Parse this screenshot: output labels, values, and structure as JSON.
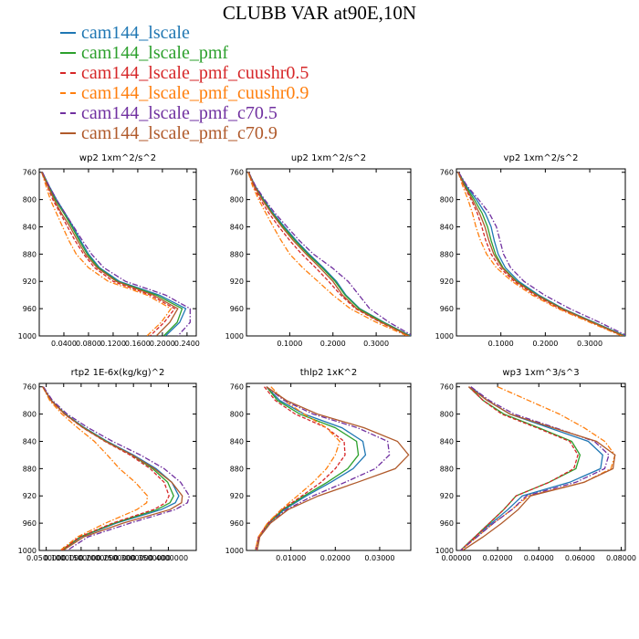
{
  "figure": {
    "title": "CLUBB VAR at90E,10N"
  },
  "legend": [
    {
      "name": "cam144_lscale",
      "color": "#1f77b4",
      "style": "solid"
    },
    {
      "name": "cam144_lscale_pmf",
      "color": "#2ca02c",
      "style": "solid"
    },
    {
      "name": "cam144_lscale_pmf_cuushr0.5",
      "color": "#d62728",
      "style": "dashed"
    },
    {
      "name": "cam144_lscale_pmf_cuushr0.9",
      "color": "#ff7f0e",
      "style": "dashdot"
    },
    {
      "name": "cam144_lscale_pmf_c70.5",
      "color": "#7030a0",
      "style": "dashdot"
    },
    {
      "name": "cam144_lscale_pmf_c70.9",
      "color": "#b05a2b",
      "style": "solid"
    }
  ],
  "chart_data": [
    {
      "type": "line",
      "title": "wp2  1xm^2/s^2",
      "y": [
        760,
        780,
        800,
        820,
        840,
        860,
        880,
        900,
        920,
        940,
        960,
        980,
        1000
      ],
      "ylim": [
        1000,
        755
      ],
      "xlim": [
        0,
        0.255
      ],
      "xticks": [
        0.04,
        0.08,
        0.12,
        0.16,
        0.2,
        0.24
      ],
      "xtick_labels": [
        "0.0400",
        "0.0800",
        "0.1200",
        "0.1600",
        "0.2000",
        "0.2400"
      ],
      "yticks": [
        760,
        800,
        840,
        880,
        920,
        960,
        1000
      ],
      "series": [
        {
          "values": [
            0.005,
            0.016,
            0.028,
            0.042,
            0.055,
            0.067,
            0.08,
            0.098,
            0.13,
            0.195,
            0.238,
            0.228,
            0.205
          ]
        },
        {
          "values": [
            0.005,
            0.015,
            0.026,
            0.04,
            0.053,
            0.065,
            0.078,
            0.096,
            0.127,
            0.19,
            0.232,
            0.224,
            0.202
          ]
        },
        {
          "values": [
            0.004,
            0.013,
            0.022,
            0.034,
            0.046,
            0.058,
            0.072,
            0.09,
            0.12,
            0.18,
            0.22,
            0.203,
            0.18
          ]
        },
        {
          "values": [
            0.004,
            0.011,
            0.018,
            0.028,
            0.038,
            0.048,
            0.06,
            0.08,
            0.112,
            0.175,
            0.214,
            0.198,
            0.175
          ]
        },
        {
          "values": [
            0.005,
            0.016,
            0.028,
            0.042,
            0.056,
            0.07,
            0.085,
            0.105,
            0.14,
            0.205,
            0.245,
            0.245,
            0.225
          ]
        },
        {
          "values": [
            0.004,
            0.014,
            0.024,
            0.036,
            0.05,
            0.062,
            0.075,
            0.094,
            0.125,
            0.185,
            0.225,
            0.212,
            0.19
          ]
        }
      ]
    },
    {
      "type": "line",
      "title": "up2  1xm^2/s^2",
      "y": [
        760,
        780,
        800,
        820,
        840,
        860,
        880,
        900,
        920,
        940,
        960,
        980,
        1000
      ],
      "ylim": [
        1000,
        755
      ],
      "xlim": [
        0,
        0.38
      ],
      "xticks": [
        0.1,
        0.2,
        0.3
      ],
      "xtick_labels": [
        "0.1000",
        "0.2000",
        "0.3000"
      ],
      "yticks": [
        760,
        800,
        840,
        880,
        920,
        960,
        1000
      ],
      "series": [
        {
          "values": [
            0.005,
            0.02,
            0.04,
            0.062,
            0.088,
            0.115,
            0.145,
            0.178,
            0.208,
            0.23,
            0.262,
            0.318,
            0.38
          ]
        },
        {
          "values": [
            0.005,
            0.019,
            0.038,
            0.06,
            0.085,
            0.112,
            0.142,
            0.175,
            0.205,
            0.228,
            0.26,
            0.316,
            0.378
          ]
        },
        {
          "values": [
            0.004,
            0.016,
            0.032,
            0.052,
            0.075,
            0.1,
            0.128,
            0.16,
            0.19,
            0.218,
            0.252,
            0.31,
            0.375
          ]
        },
        {
          "values": [
            0.004,
            0.014,
            0.028,
            0.045,
            0.062,
            0.08,
            0.1,
            0.13,
            0.165,
            0.2,
            0.24,
            0.3,
            0.372
          ]
        },
        {
          "values": [
            0.005,
            0.021,
            0.042,
            0.066,
            0.094,
            0.122,
            0.155,
            0.198,
            0.235,
            0.26,
            0.285,
            0.33,
            0.385
          ]
        },
        {
          "values": [
            0.005,
            0.018,
            0.036,
            0.058,
            0.082,
            0.108,
            0.138,
            0.17,
            0.2,
            0.222,
            0.255,
            0.312,
            0.376
          ]
        }
      ]
    },
    {
      "type": "line",
      "title": "vp2  1xm^2/s^2",
      "y": [
        760,
        780,
        800,
        820,
        840,
        860,
        880,
        900,
        920,
        940,
        960,
        980,
        1000
      ],
      "ylim": [
        1000,
        755
      ],
      "xlim": [
        0,
        0.38
      ],
      "xticks": [
        0.1,
        0.2,
        0.3
      ],
      "xtick_labels": [
        "0.1000",
        "0.2000",
        "0.3000"
      ],
      "yticks": [
        760,
        800,
        840,
        880,
        920,
        960,
        1000
      ],
      "series": [
        {
          "values": [
            0.005,
            0.022,
            0.045,
            0.065,
            0.078,
            0.085,
            0.094,
            0.11,
            0.14,
            0.185,
            0.24,
            0.31,
            0.38
          ]
        },
        {
          "values": [
            0.005,
            0.02,
            0.04,
            0.058,
            0.07,
            0.078,
            0.088,
            0.105,
            0.136,
            0.182,
            0.238,
            0.308,
            0.378
          ]
        },
        {
          "values": [
            0.004,
            0.017,
            0.033,
            0.047,
            0.057,
            0.066,
            0.078,
            0.098,
            0.13,
            0.176,
            0.232,
            0.304,
            0.375
          ]
        },
        {
          "values": [
            0.004,
            0.014,
            0.026,
            0.036,
            0.044,
            0.054,
            0.068,
            0.09,
            0.125,
            0.17,
            0.228,
            0.3,
            0.372
          ]
        },
        {
          "values": [
            0.005,
            0.024,
            0.05,
            0.074,
            0.09,
            0.098,
            0.106,
            0.122,
            0.152,
            0.198,
            0.255,
            0.322,
            0.385
          ]
        },
        {
          "values": [
            0.004,
            0.018,
            0.036,
            0.052,
            0.064,
            0.073,
            0.084,
            0.103,
            0.134,
            0.18,
            0.236,
            0.306,
            0.376
          ]
        }
      ]
    },
    {
      "type": "line",
      "title": "rtp2  1E-6x(kg/kg)^2",
      "y": [
        760,
        780,
        800,
        820,
        840,
        860,
        880,
        900,
        920,
        930,
        940,
        960,
        980,
        1000
      ],
      "ylim": [
        1000,
        755
      ],
      "xlim": [
        0.03,
        0.48
      ],
      "xticks": [
        0.05,
        0.1,
        0.15,
        0.2,
        0.25,
        0.3,
        0.35,
        0.4
      ],
      "xtick_labels": [
        "0.0500000",
        "0.1000000",
        "0.1500000",
        "0.2000000",
        "0.2500000",
        "0.3000000",
        "0.3500000",
        "0.4000000"
      ],
      "yticks": [
        760,
        800,
        840,
        880,
        920,
        960,
        1000
      ],
      "series": [
        {
          "values": [
            0.04,
            0.065,
            0.105,
            0.16,
            0.225,
            0.3,
            0.365,
            0.41,
            0.43,
            0.42,
            0.38,
            0.25,
            0.15,
            0.095
          ]
        },
        {
          "values": [
            0.04,
            0.064,
            0.104,
            0.158,
            0.222,
            0.295,
            0.355,
            0.398,
            0.415,
            0.405,
            0.368,
            0.245,
            0.148,
            0.094
          ]
        },
        {
          "values": [
            0.04,
            0.063,
            0.102,
            0.155,
            0.218,
            0.29,
            0.348,
            0.388,
            0.402,
            0.392,
            0.358,
            0.24,
            0.146,
            0.093
          ]
        },
        {
          "values": [
            0.04,
            0.06,
            0.095,
            0.14,
            0.188,
            0.225,
            0.26,
            0.305,
            0.34,
            0.338,
            0.31,
            0.22,
            0.14,
            0.09
          ]
        },
        {
          "values": [
            0.042,
            0.068,
            0.11,
            0.17,
            0.24,
            0.32,
            0.388,
            0.435,
            0.46,
            0.455,
            0.42,
            0.29,
            0.17,
            0.11
          ]
        },
        {
          "values": [
            0.04,
            0.064,
            0.103,
            0.156,
            0.22,
            0.296,
            0.36,
            0.41,
            0.44,
            0.438,
            0.405,
            0.27,
            0.158,
            0.098
          ]
        }
      ]
    },
    {
      "type": "line",
      "title": "thlp2  1xK^2",
      "y": [
        760,
        780,
        800,
        820,
        840,
        860,
        880,
        900,
        920,
        940,
        960,
        980,
        1000
      ],
      "ylim": [
        1000,
        755
      ],
      "xlim": [
        0,
        0.037
      ],
      "xticks": [
        0.01,
        0.02,
        0.03
      ],
      "xtick_labels": [
        "0.01000",
        "0.02000",
        "0.03000"
      ],
      "yticks": [
        760,
        800,
        840,
        880,
        920,
        960,
        1000
      ],
      "series": [
        {
          "values": [
            0.0045,
            0.0075,
            0.013,
            0.0215,
            0.0262,
            0.0268,
            0.024,
            0.019,
            0.0135,
            0.0085,
            0.005,
            0.0028,
            0.002
          ]
        },
        {
          "values": [
            0.0045,
            0.007,
            0.012,
            0.02,
            0.0248,
            0.0252,
            0.0228,
            0.0182,
            0.013,
            0.0082,
            0.005,
            0.0028,
            0.002
          ]
        },
        {
          "values": [
            0.004,
            0.0065,
            0.011,
            0.018,
            0.022,
            0.0222,
            0.02,
            0.0168,
            0.0125,
            0.008,
            0.0048,
            0.0027,
            0.002
          ]
        },
        {
          "values": [
            0.0055,
            0.0085,
            0.013,
            0.018,
            0.021,
            0.02,
            0.018,
            0.015,
            0.0115,
            0.0078,
            0.0047,
            0.0027,
            0.002
          ]
        },
        {
          "values": [
            0.0045,
            0.0085,
            0.015,
            0.025,
            0.0318,
            0.0322,
            0.029,
            0.0222,
            0.015,
            0.009,
            0.0052,
            0.0029,
            0.0022
          ]
        },
        {
          "values": [
            0.0045,
            0.009,
            0.016,
            0.0265,
            0.034,
            0.0365,
            0.0335,
            0.025,
            0.0162,
            0.0094,
            0.0054,
            0.003,
            0.0024
          ]
        }
      ]
    },
    {
      "type": "line",
      "title": "wp3  1xm^3/s^3",
      "y": [
        760,
        780,
        800,
        820,
        840,
        860,
        880,
        900,
        920,
        940,
        960,
        980,
        1000
      ],
      "ylim": [
        1000,
        755
      ],
      "xlim": [
        0,
        0.082
      ],
      "xticks": [
        0,
        0.02,
        0.04,
        0.06,
        0.08
      ],
      "xtick_labels": [
        "0.00000",
        "0.02000",
        "0.04000",
        "0.06000",
        "0.08000"
      ],
      "yticks": [
        760,
        800,
        840,
        880,
        920,
        960,
        1000
      ],
      "series": [
        {
          "values": [
            0.007,
            0.015,
            0.026,
            0.045,
            0.064,
            0.071,
            0.07,
            0.055,
            0.032,
            0.025,
            0.017,
            0.009,
            0.002
          ]
        },
        {
          "values": [
            0.006,
            0.013,
            0.023,
            0.04,
            0.056,
            0.06,
            0.058,
            0.045,
            0.029,
            0.023,
            0.016,
            0.009,
            0.002
          ]
        },
        {
          "values": [
            0.006,
            0.013,
            0.022,
            0.039,
            0.055,
            0.059,
            0.057,
            0.045,
            0.029,
            0.023,
            0.016,
            0.009,
            0.002
          ]
        },
        {
          "values": [
            0.02,
            0.035,
            0.05,
            0.062,
            0.072,
            0.077,
            0.075,
            0.062,
            0.035,
            0.027,
            0.018,
            0.01,
            0.002
          ]
        },
        {
          "values": [
            0.007,
            0.016,
            0.028,
            0.048,
            0.067,
            0.074,
            0.072,
            0.058,
            0.034,
            0.027,
            0.018,
            0.01,
            0.002
          ]
        },
        {
          "values": [
            0.006,
            0.015,
            0.026,
            0.047,
            0.068,
            0.077,
            0.076,
            0.062,
            0.036,
            0.03,
            0.022,
            0.013,
            0.003
          ]
        }
      ]
    }
  ]
}
